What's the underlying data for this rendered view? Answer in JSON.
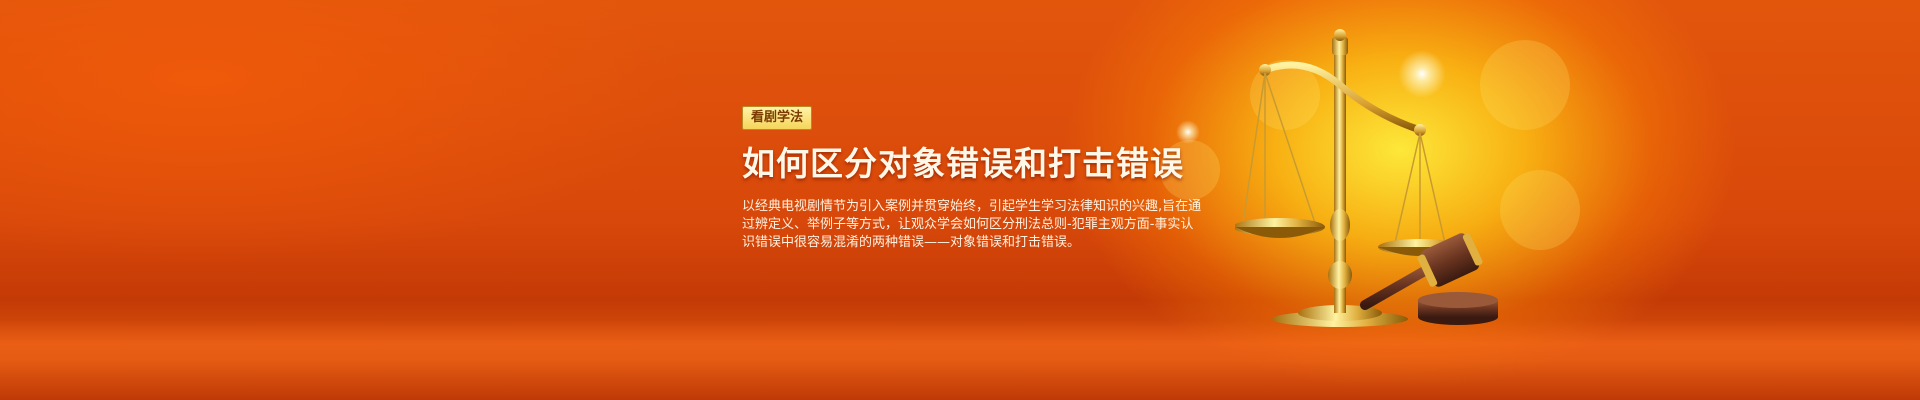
{
  "banner": {
    "tag_label": "看剧学法",
    "title": "如何区分对象错误和打击错误",
    "description": "以经典电视剧情节为引入案例并贯穿始终，引起学生学习法律知识的兴趣,旨在通过辨定义、举例子等方式，让观众学会如何区分刑法总则-犯罪主观方面-事实认识错误中很容易混淆的两种错误——对象错误和打击错误。",
    "illustration": "scales-of-justice-and-gavel",
    "colors": {
      "background_primary": "#d8480a",
      "glow": "#ffe83c",
      "tag_background": "#f5d55a",
      "title_text": "#fff8e8",
      "gold": "#e0b040",
      "gavel_wood": "#6a3420"
    }
  }
}
